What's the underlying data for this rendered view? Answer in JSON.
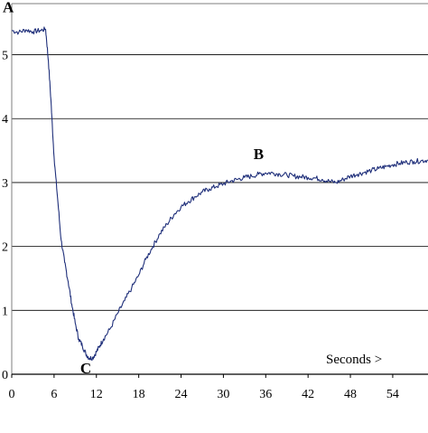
{
  "chart_data": {
    "type": "line",
    "title": "",
    "xlabel": "",
    "ylabel": "",
    "grid": true,
    "xlim": [
      0,
      59
    ],
    "ylim": [
      0,
      5.8
    ],
    "x_ticks": [
      "0",
      "6",
      "12",
      "18",
      "24",
      "30",
      "36",
      "42",
      "48",
      "54"
    ],
    "y_ticks": [
      "0",
      "1",
      "2",
      "3",
      "4",
      "5"
    ],
    "units_label": "Seconds  >",
    "series": [
      {
        "color": "#1f2f7a",
        "points": [
          [
            0,
            5.38
          ],
          [
            1,
            5.35
          ],
          [
            2,
            5.39
          ],
          [
            3,
            5.36
          ],
          [
            4,
            5.38
          ],
          [
            4.8,
            5.4
          ],
          [
            5.2,
            4.9
          ],
          [
            5.6,
            4.2
          ],
          [
            6,
            3.4
          ],
          [
            6.5,
            2.75
          ],
          [
            7,
            2.1
          ],
          [
            7.5,
            1.75
          ],
          [
            8,
            1.45
          ],
          [
            8.5,
            1.1
          ],
          [
            9,
            0.8
          ],
          [
            9.5,
            0.55
          ],
          [
            10,
            0.45
          ],
          [
            10.5,
            0.32
          ],
          [
            11,
            0.25
          ],
          [
            11.5,
            0.26
          ],
          [
            12,
            0.35
          ],
          [
            12.5,
            0.45
          ],
          [
            13,
            0.55
          ],
          [
            14,
            0.72
          ],
          [
            15,
            0.95
          ],
          [
            16,
            1.15
          ],
          [
            17,
            1.35
          ],
          [
            18,
            1.55
          ],
          [
            19,
            1.8
          ],
          [
            20,
            2.0
          ],
          [
            21,
            2.2
          ],
          [
            22,
            2.35
          ],
          [
            23,
            2.5
          ],
          [
            24,
            2.62
          ],
          [
            25,
            2.7
          ],
          [
            26,
            2.78
          ],
          [
            27,
            2.85
          ],
          [
            28,
            2.9
          ],
          [
            29,
            2.94
          ],
          [
            30,
            2.98
          ],
          [
            31,
            3.02
          ],
          [
            32,
            3.05
          ],
          [
            33,
            3.08
          ],
          [
            34,
            3.1
          ],
          [
            35,
            3.13
          ],
          [
            36,
            3.15
          ],
          [
            37,
            3.15
          ],
          [
            38,
            3.13
          ],
          [
            39,
            3.12
          ],
          [
            40,
            3.1
          ],
          [
            41,
            3.09
          ],
          [
            42,
            3.08
          ],
          [
            43,
            3.07
          ],
          [
            44,
            3.05
          ],
          [
            45,
            3.02
          ],
          [
            46,
            3.0
          ],
          [
            47,
            3.05
          ],
          [
            48,
            3.1
          ],
          [
            49,
            3.13
          ],
          [
            50,
            3.16
          ],
          [
            51,
            3.19
          ],
          [
            52,
            3.22
          ],
          [
            53,
            3.25
          ],
          [
            54,
            3.28
          ],
          [
            55,
            3.3
          ],
          [
            56,
            3.32
          ],
          [
            57,
            3.33
          ],
          [
            58,
            3.34
          ],
          [
            59,
            3.35
          ]
        ]
      }
    ],
    "annotations": [
      {
        "text": "A",
        "x": 0,
        "y": 5.75
      },
      {
        "text": "B",
        "x": 35,
        "y": 3.45
      },
      {
        "text": "C",
        "x": 10.5,
        "y": 0.1
      }
    ]
  }
}
